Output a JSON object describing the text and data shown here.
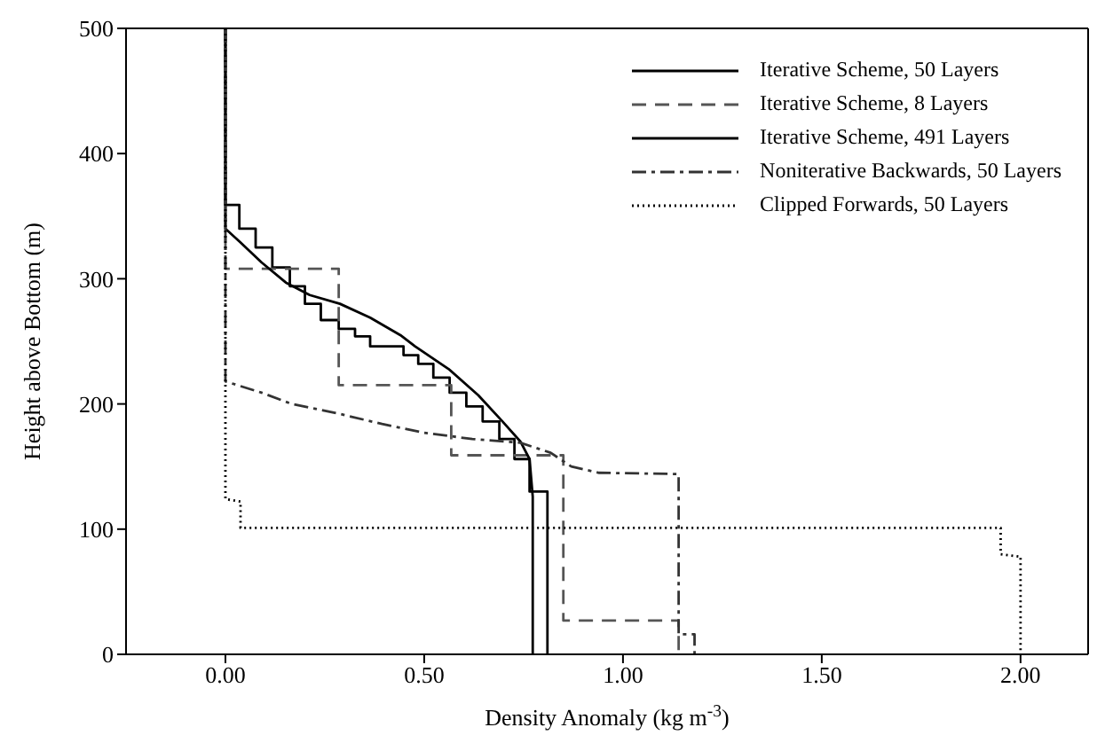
{
  "chart_data": {
    "type": "line",
    "xlabel": "Density Anomaly (kg m$^{-3}$)",
    "ylabel": "Height above Bottom (m)",
    "xlim": [
      -0.25,
      2.17
    ],
    "xticks": [
      {
        "value": 0,
        "label": "0.00"
      },
      {
        "value": 0.5,
        "label": "0.50"
      },
      {
        "value": 1,
        "label": "1.00"
      },
      {
        "value": 1.5,
        "label": "1.50"
      },
      {
        "value": 2,
        "label": "2.00"
      }
    ],
    "ylim": [
      0,
      500
    ],
    "yticks": [
      0,
      100,
      200,
      300,
      400,
      500
    ],
    "legend": "top right",
    "marker": "none",
    "series": [
      {
        "name": "Iterative Scheme, 50 Layers",
        "color": "#000000",
        "line_style": "solid",
        "x": [
          0,
          0,
          0.035,
          0.035,
          0.076,
          0.076,
          0.118,
          0.118,
          0.162,
          0.162,
          0.2,
          0.2,
          0.24,
          0.24,
          0.285,
          0.285,
          0.326,
          0.326,
          0.364,
          0.364,
          0.448,
          0.448,
          0.485,
          0.485,
          0.523,
          0.523,
          0.564,
          0.564,
          0.606,
          0.606,
          0.647,
          0.647,
          0.689,
          0.689,
          0.727,
          0.727,
          0.765,
          0.765,
          0.81,
          0.81
        ],
        "values": [
          500,
          359,
          359,
          340,
          340,
          325,
          325,
          309,
          309,
          294,
          294,
          280,
          280,
          267,
          267,
          260,
          260,
          254,
          254,
          246,
          246,
          239,
          239,
          232,
          232,
          221,
          221,
          209,
          209,
          198,
          198,
          186,
          186,
          172,
          172,
          156,
          156,
          130,
          130,
          0
        ]
      },
      {
        "name": "Iterative Scheme, 8 Layers",
        "color": "#555555",
        "line_style": "dashed",
        "x": [
          0,
          0,
          0.285,
          0.285,
          0.568,
          0.568,
          0.85,
          0.85,
          1.14,
          1.14
        ],
        "values": [
          500,
          308,
          308,
          215,
          215,
          159,
          159,
          27,
          27,
          0
        ]
      },
      {
        "name": "Iterative Scheme, 491 Layers",
        "color": "#000000",
        "line_style": "solid",
        "x": [
          0,
          0,
          0.038,
          0.091,
          0.152,
          0.212,
          0.288,
          0.364,
          0.44,
          0.477,
          0.561,
          0.636,
          0.697,
          0.742,
          0.765,
          0.773,
          0.773
        ],
        "values": [
          500,
          340,
          329,
          313,
          297,
          287,
          280,
          269,
          255,
          246,
          228,
          207,
          186,
          170,
          156,
          126,
          0
        ]
      },
      {
        "name": "Noniterative Backwards, 50 Layers",
        "color": "#333333",
        "line_style": "dashdot",
        "x": [
          0,
          0,
          0.091,
          0.167,
          0.288,
          0.394,
          0.5,
          0.621,
          0.742,
          0.818,
          0.87,
          0.94,
          1.14,
          1.14,
          1.18,
          1.18
        ],
        "values": [
          500,
          218,
          209,
          200,
          192,
          184,
          177,
          172,
          169,
          161,
          150,
          145,
          144,
          16,
          16,
          0
        ]
      },
      {
        "name": "Clipped Forwards, 50 Layers",
        "color": "#000000",
        "line_style": "dotted",
        "x": [
          0,
          0,
          0.038,
          0.038,
          1.95,
          1.95,
          2.0,
          2.0
        ],
        "values": [
          500,
          124,
          122,
          101,
          101,
          80,
          78,
          0
        ]
      }
    ]
  }
}
